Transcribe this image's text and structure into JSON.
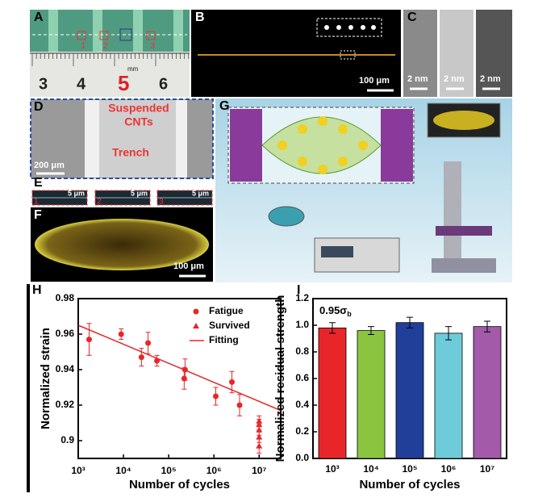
{
  "panels": {
    "labels": [
      "A",
      "B",
      "C",
      "D",
      "E",
      "F",
      "G",
      "H",
      "I"
    ],
    "a_marks": [
      "1",
      "2",
      "3"
    ],
    "ruler": [
      "3",
      "4",
      "5",
      "6"
    ],
    "ruler_unit": "mm",
    "b_scale": "100 μm",
    "c_scales": [
      "2 nm",
      "2 nm",
      "2 nm"
    ],
    "d_texts": [
      "Suspended",
      "CNTs",
      "Trench"
    ],
    "d_scale": "200 μm",
    "e_scales": [
      "5 μm",
      "5 μm",
      "5 μm"
    ],
    "e_marks": [
      "1",
      "2",
      "3"
    ],
    "f_scale": "100 μm"
  },
  "chart_data": [
    {
      "type": "scatter",
      "xlabel": "Number of cycles",
      "ylabel": "Normalized strain",
      "xlog": true,
      "xlim": [
        1000,
        30000000
      ],
      "ylim": [
        0.89,
        0.98
      ],
      "xticks": [
        {
          "value": 1000,
          "label": "10³"
        },
        {
          "value": 10000,
          "label": "10⁴"
        },
        {
          "value": 100000,
          "label": "10⁵"
        },
        {
          "value": 1000000,
          "label": "10⁶"
        },
        {
          "value": 10000000,
          "label": "10⁷"
        }
      ],
      "yticks": [
        0.9,
        0.92,
        0.94,
        0.96,
        0.98
      ],
      "legend": "upper right",
      "series": [
        {
          "name": "Fatigue",
          "color": "#e8262a",
          "marker": "circle",
          "x": [
            1740,
            8900,
            25000,
            35000,
            55000,
            220000,
            230000,
            1100000,
            2500000,
            3700000
          ],
          "values": [
            0.957,
            0.96,
            0.947,
            0.955,
            0.945,
            0.935,
            0.94,
            0.925,
            0.933,
            0.92
          ],
          "errors": [
            0.009,
            0.003,
            0.005,
            0.006,
            0.003,
            0.006,
            0.006,
            0.005,
            0.006,
            0.006
          ]
        },
        {
          "name": "Survived",
          "color": "#e8262a",
          "marker": "triangle",
          "x": [
            10000000,
            10000000,
            10000000,
            10000000,
            10000000
          ],
          "values": [
            0.911,
            0.909,
            0.906,
            0.902,
            0.897
          ],
          "errors": [
            0.003,
            0.003,
            0.003,
            0.003,
            0.004
          ]
        },
        {
          "name": "Fitting",
          "color": "#e8262a",
          "marker": "line",
          "x": [
            1000,
            30000000
          ],
          "values": [
            0.965,
            0.917
          ]
        }
      ]
    },
    {
      "type": "bar",
      "xlabel": "Number of cycles",
      "ylabel": "Normalized residual strength",
      "annotation": "0.95σ",
      "annotation_sub": "b",
      "categories": [
        "10³",
        "10⁴",
        "10⁵",
        "10⁶",
        "10⁷"
      ],
      "values": [
        0.98,
        0.96,
        1.02,
        0.94,
        0.99
      ],
      "errors": [
        0.04,
        0.03,
        0.04,
        0.05,
        0.04
      ],
      "colors": [
        "#e8262a",
        "#8bc53f",
        "#1f3f99",
        "#6ecbd9",
        "#a35aa8"
      ],
      "ylim": [
        0,
        1.2
      ],
      "yticks": [
        {
          "value": 0,
          "label": "0.0"
        },
        0.2,
        0.4,
        0.6,
        0.8,
        {
          "value": 1,
          "label": "1.0"
        },
        1.2
      ]
    }
  ]
}
